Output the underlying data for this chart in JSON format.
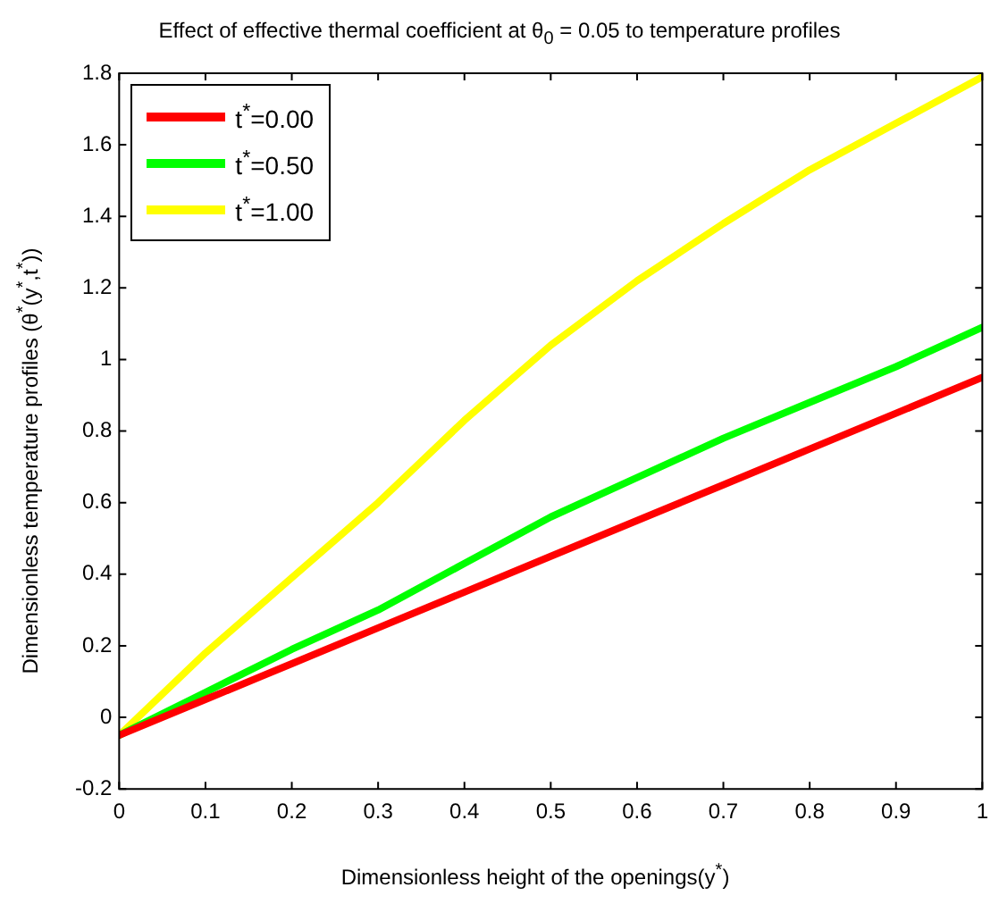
{
  "chart_data": {
    "type": "line",
    "title": "Effect of effective thermal coefficient at θ$_{0}$ = 0.05 to temperature profiles",
    "xlabel": "Dimensionless height of the openings(y$^{*}$)",
    "ylabel": "Dimensionless temperature profiles (θ$^{*}$(y$^{*}$,t$^{*}$))",
    "x": [
      0,
      0.1,
      0.2,
      0.3,
      0.4,
      0.5,
      0.6,
      0.7,
      0.8,
      0.9,
      1
    ],
    "series": [
      {
        "name": "t$^{*}$=0.00",
        "color": "#ff0000",
        "values": [
          -0.05,
          0.05,
          0.15,
          0.25,
          0.35,
          0.45,
          0.55,
          0.65,
          0.75,
          0.85,
          0.95
        ]
      },
      {
        "name": "t$^{*}$=0.50",
        "color": "#00ff00",
        "values": [
          -0.05,
          0.07,
          0.19,
          0.3,
          0.43,
          0.56,
          0.67,
          0.78,
          0.88,
          0.98,
          1.09
        ]
      },
      {
        "name": "t$^{*}$=1.00",
        "color": "#ffff00",
        "values": [
          -0.05,
          0.18,
          0.39,
          0.6,
          0.83,
          1.04,
          1.22,
          1.38,
          1.53,
          1.66,
          1.79
        ]
      }
    ],
    "xlim": [
      0,
      1
    ],
    "xticks": [
      0,
      0.1,
      0.2,
      0.3,
      0.4,
      0.5,
      0.6,
      0.7,
      0.8,
      0.9,
      1
    ],
    "ylim": [
      -0.2,
      1.8
    ],
    "yticks": [
      -0.2,
      0,
      0.2,
      0.4,
      0.6,
      0.8,
      1,
      1.2,
      1.4,
      1.6,
      1.8
    ],
    "grid": false,
    "legend": "top left",
    "marker": "none",
    "line_style": "solid"
  }
}
